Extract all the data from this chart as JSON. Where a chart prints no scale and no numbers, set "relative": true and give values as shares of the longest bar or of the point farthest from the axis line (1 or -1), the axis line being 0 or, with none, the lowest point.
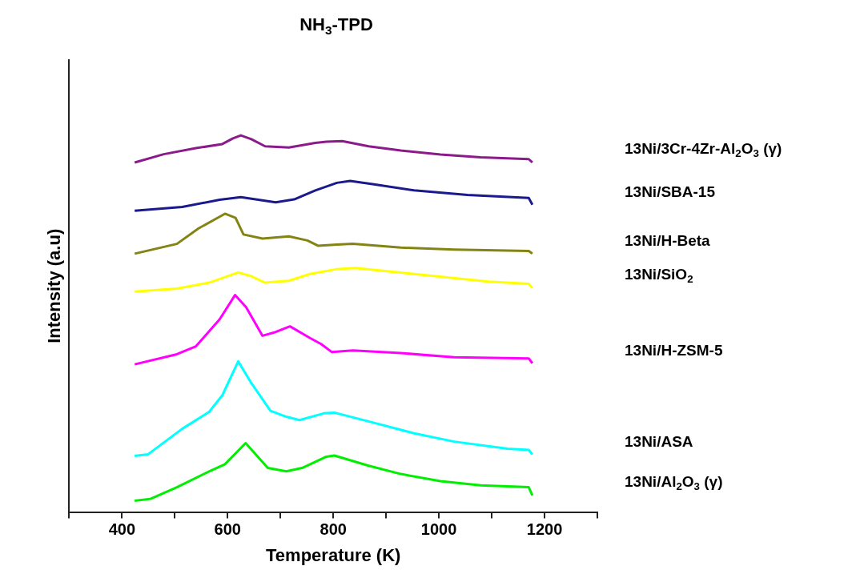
{
  "chart_data": {
    "type": "line",
    "title": "NH$_{3}$-TPD",
    "xlabel": "Temperature (K)",
    "ylabel": "Intensity (a.u)",
    "relative": true,
    "grid": false,
    "legend": false,
    "xlim": [
      300,
      1300
    ],
    "xticks": [
      {
        "value": 300,
        "label": null
      },
      400,
      {
        "value": 500,
        "label": null
      },
      600,
      {
        "value": 700,
        "label": null
      },
      800,
      {
        "value": 900,
        "label": null
      },
      1000,
      {
        "value": 1100,
        "label": null
      },
      1200,
      {
        "value": 1300,
        "label": null
      }
    ],
    "series": [
      {
        "name": "13Ni/3Cr-4Zr-Al$_{2}$O$_{3}$ (γ)",
        "color": "#8b1a8b",
        "x": [
          424,
          479,
          540,
          590,
          610,
          625,
          645,
          671,
          716,
          766,
          787,
          817,
          867,
          928,
          1003,
          1079,
          1170,
          1177
        ],
        "values": [
          0.928,
          0.95,
          0.966,
          0.977,
          0.992,
          1.0,
          0.99,
          0.971,
          0.968,
          0.98,
          0.983,
          0.985,
          0.971,
          0.96,
          0.949,
          0.942,
          0.937,
          0.928
        ]
      },
      {
        "name": "13Ni/SBA-15",
        "color": "#1a1a8c",
        "x": [
          424,
          514,
          585,
          625,
          691,
          726,
          766,
          807,
          832,
          877,
          953,
          1054,
          1170,
          1177
        ],
        "values": [
          0.8,
          0.81,
          0.829,
          0.836,
          0.822,
          0.83,
          0.854,
          0.874,
          0.879,
          0.87,
          0.854,
          0.842,
          0.834,
          0.816
        ]
      },
      {
        "name": "13Ni/H-Beta",
        "color": "#848414",
        "x": [
          424,
          504,
          545,
          595,
          615,
          630,
          666,
          716,
          751,
          771,
          807,
          837,
          928,
          1029,
          1170,
          1177
        ],
        "values": [
          0.686,
          0.712,
          0.753,
          0.792,
          0.781,
          0.737,
          0.726,
          0.732,
          0.721,
          0.707,
          0.71,
          0.712,
          0.702,
          0.697,
          0.693,
          0.686
        ]
      },
      {
        "name": "13Ni/SiO$_{2}$",
        "color": "#ffff00",
        "x": [
          424,
          504,
          565,
          620,
          645,
          671,
          716,
          756,
          807,
          842,
          953,
          1094,
          1170,
          1177
        ],
        "values": [
          0.585,
          0.593,
          0.609,
          0.636,
          0.626,
          0.609,
          0.614,
          0.632,
          0.645,
          0.648,
          0.632,
          0.612,
          0.606,
          0.595
        ]
      },
      {
        "name": "13Ni/H-ZSM-5",
        "color": "#ff00ff",
        "x": [
          424,
          504,
          540,
          585,
          614,
          635,
          666,
          691,
          718,
          756,
          777,
          797,
          837,
          928,
          1029,
          1170,
          1177
        ],
        "values": [
          0.392,
          0.419,
          0.44,
          0.512,
          0.576,
          0.544,
          0.468,
          0.478,
          0.493,
          0.462,
          0.446,
          0.425,
          0.429,
          0.422,
          0.411,
          0.408,
          0.395
        ]
      },
      {
        "name": "13Ni/ASA",
        "color": "#00ffff",
        "x": [
          424,
          449,
          514,
          565,
          590,
          620,
          645,
          681,
          711,
          736,
          782,
          802,
          877,
          953,
          1029,
          1130,
          1170,
          1177
        ],
        "values": [
          0.149,
          0.153,
          0.221,
          0.266,
          0.31,
          0.4,
          0.342,
          0.269,
          0.253,
          0.244,
          0.262,
          0.264,
          0.237,
          0.209,
          0.187,
          0.168,
          0.165,
          0.153
        ]
      },
      {
        "name": "13Ni/Al$_{2}$O$_{3}$ (γ)",
        "color": "#00ee00",
        "x": [
          424,
          454,
          504,
          565,
          595,
          634,
          650,
          676,
          711,
          741,
          787,
          802,
          867,
          928,
          1003,
          1079,
          1170,
          1177
        ],
        "values": [
          0.03,
          0.035,
          0.066,
          0.108,
          0.127,
          0.183,
          0.158,
          0.117,
          0.108,
          0.117,
          0.147,
          0.15,
          0.123,
          0.101,
          0.082,
          0.071,
          0.066,
          0.044
        ]
      }
    ]
  }
}
